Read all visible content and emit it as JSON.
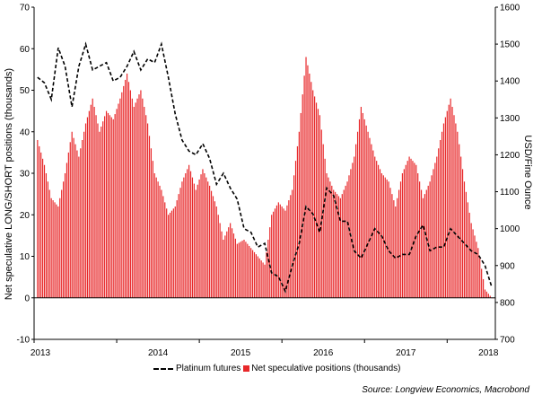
{
  "chart_data": {
    "type": "bar",
    "left_axis": {
      "label": "Net speculative LONG/SHORT positions (thousands)",
      "ylim": [
        -10,
        70
      ],
      "ticks": [
        -10,
        0,
        10,
        20,
        30,
        40,
        50,
        60,
        70
      ]
    },
    "right_axis": {
      "label": "USD/Fine Ounce",
      "ylim": [
        700,
        1600
      ],
      "ticks": [
        700,
        800,
        900,
        1000,
        1100,
        1200,
        1300,
        1400,
        1500,
        1600
      ]
    },
    "x_axis": {
      "tick_labels": [
        "2013",
        "2014",
        "2015",
        "2016",
        "2017",
        "2018"
      ],
      "range": [
        "2013-01",
        "2018-07"
      ]
    },
    "grid": false,
    "legend_position": "bottom",
    "series": [
      {
        "name": "Platinum futures",
        "kind": "line",
        "style": "dashed",
        "color": "#000000",
        "axis": "right",
        "x": [
          "2013-01",
          "2013-02",
          "2013-03",
          "2013-04",
          "2013-05",
          "2013-06",
          "2013-07",
          "2013-08",
          "2013-09",
          "2013-10",
          "2013-11",
          "2013-12",
          "2014-01",
          "2014-02",
          "2014-03",
          "2014-04",
          "2014-05",
          "2014-06",
          "2014-07",
          "2014-08",
          "2014-09",
          "2014-10",
          "2014-11",
          "2014-12",
          "2015-01",
          "2015-02",
          "2015-03",
          "2015-04",
          "2015-05",
          "2015-06",
          "2015-07",
          "2015-08",
          "2015-09",
          "2015-10",
          "2015-11",
          "2015-12",
          "2016-01",
          "2016-02",
          "2016-03",
          "2016-04",
          "2016-05",
          "2016-06",
          "2016-07",
          "2016-08",
          "2016-09",
          "2016-10",
          "2016-11",
          "2016-12",
          "2017-01",
          "2017-02",
          "2017-03",
          "2017-04",
          "2017-05",
          "2017-06",
          "2017-07",
          "2017-08",
          "2017-09",
          "2017-10",
          "2017-11",
          "2017-12",
          "2018-01",
          "2018-02",
          "2018-03",
          "2018-04",
          "2018-05",
          "2018-06",
          "2018-07"
        ],
        "values": [
          1410,
          1395,
          1350,
          1490,
          1440,
          1330,
          1440,
          1500,
          1430,
          1440,
          1450,
          1400,
          1410,
          1440,
          1480,
          1430,
          1460,
          1450,
          1500,
          1410,
          1310,
          1240,
          1210,
          1200,
          1230,
          1190,
          1120,
          1150,
          1110,
          1080,
          1000,
          990,
          950,
          960,
          880,
          870,
          830,
          900,
          960,
          1060,
          1040,
          990,
          1110,
          1090,
          1020,
          1020,
          940,
          920,
          960,
          1000,
          980,
          940,
          920,
          930,
          930,
          980,
          1010,
          940,
          950,
          950,
          1000,
          980,
          960,
          940,
          930,
          900,
          840
        ]
      },
      {
        "name": "Net speculative positions (thousands)",
        "kind": "bar",
        "color": "#e8282a",
        "axis": "left",
        "x": [
          "2013-01",
          "2013-02",
          "2013-03",
          "2013-04",
          "2013-05",
          "2013-06",
          "2013-07",
          "2013-08",
          "2013-09",
          "2013-10",
          "2013-11",
          "2013-12",
          "2014-01",
          "2014-02",
          "2014-03",
          "2014-04",
          "2014-05",
          "2014-06",
          "2014-07",
          "2014-08",
          "2014-09",
          "2014-10",
          "2014-11",
          "2014-12",
          "2015-01",
          "2015-02",
          "2015-03",
          "2015-04",
          "2015-05",
          "2015-06",
          "2015-07",
          "2015-08",
          "2015-09",
          "2015-10",
          "2015-11",
          "2015-12",
          "2016-01",
          "2016-02",
          "2016-03",
          "2016-04",
          "2016-05",
          "2016-06",
          "2016-07",
          "2016-08",
          "2016-09",
          "2016-10",
          "2016-11",
          "2016-12",
          "2017-01",
          "2017-02",
          "2017-03",
          "2017-04",
          "2017-05",
          "2017-06",
          "2017-07",
          "2017-08",
          "2017-09",
          "2017-10",
          "2017-11",
          "2017-12",
          "2018-01",
          "2018-02",
          "2018-03",
          "2018-04",
          "2018-05",
          "2018-06",
          "2018-07"
        ],
        "values": [
          38,
          32,
          24,
          22,
          30,
          40,
          34,
          42,
          48,
          40,
          45,
          43,
          48,
          54,
          46,
          50,
          42,
          30,
          26,
          20,
          22,
          28,
          32,
          26,
          31,
          27,
          22,
          14,
          18,
          13,
          14,
          12,
          10,
          8,
          20,
          23,
          21,
          26,
          40,
          58,
          50,
          44,
          30,
          26,
          24,
          28,
          34,
          46,
          40,
          34,
          30,
          28,
          22,
          30,
          34,
          32,
          24,
          28,
          34,
          42,
          48,
          40,
          28,
          18,
          12,
          2,
          0
        ]
      }
    ]
  },
  "legend": {
    "line_label": "Platinum futures",
    "bar_label": "Net speculative positions (thousands)"
  },
  "source": "Source: Longview Economics, Macrobond"
}
